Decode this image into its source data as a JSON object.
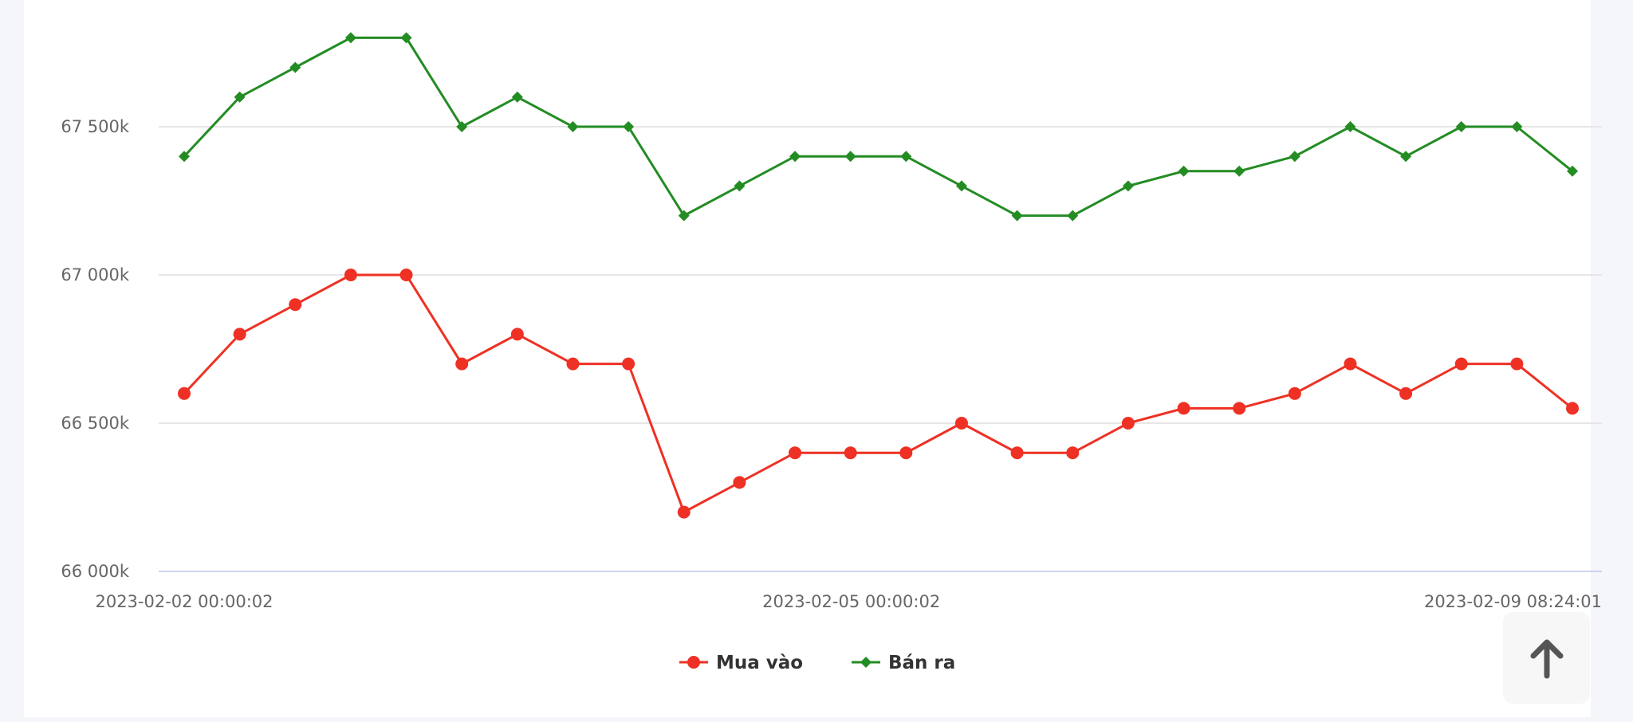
{
  "chart_data": {
    "type": "line",
    "x_tick_labels": [
      "2023-02-02 00:00:02",
      "2023-02-05 00:00:02",
      "2023-02-09 08:24:01"
    ],
    "y_tick_labels": [
      "66 000k",
      "66 500k",
      "67 000k",
      "67 500k"
    ],
    "y_ticks": [
      66000,
      66500,
      67000,
      67500
    ],
    "ylim": [
      66000,
      67900
    ],
    "grid": true,
    "legend_position": "bottom",
    "series": [
      {
        "name": "Mua vào",
        "color": "#ee3124",
        "marker": "circle",
        "values": [
          66600,
          66800,
          66900,
          67000,
          67000,
          66700,
          66800,
          66700,
          66700,
          66200,
          66300,
          66400,
          66400,
          66400,
          66500,
          66400,
          66400,
          66500,
          66550,
          66550,
          66600,
          66700,
          66600,
          66700,
          66700,
          66550
        ]
      },
      {
        "name": "Bán ra",
        "color": "#238c23",
        "marker": "diamond",
        "values": [
          67400,
          67600,
          67700,
          67800,
          67800,
          67500,
          67600,
          67500,
          67500,
          67200,
          67300,
          67400,
          67400,
          67400,
          67300,
          67200,
          67200,
          67300,
          67350,
          67350,
          67400,
          67500,
          67400,
          67500,
          67500,
          67350
        ]
      }
    ]
  },
  "scroll_top": {
    "icon": "arrow-up-icon"
  }
}
